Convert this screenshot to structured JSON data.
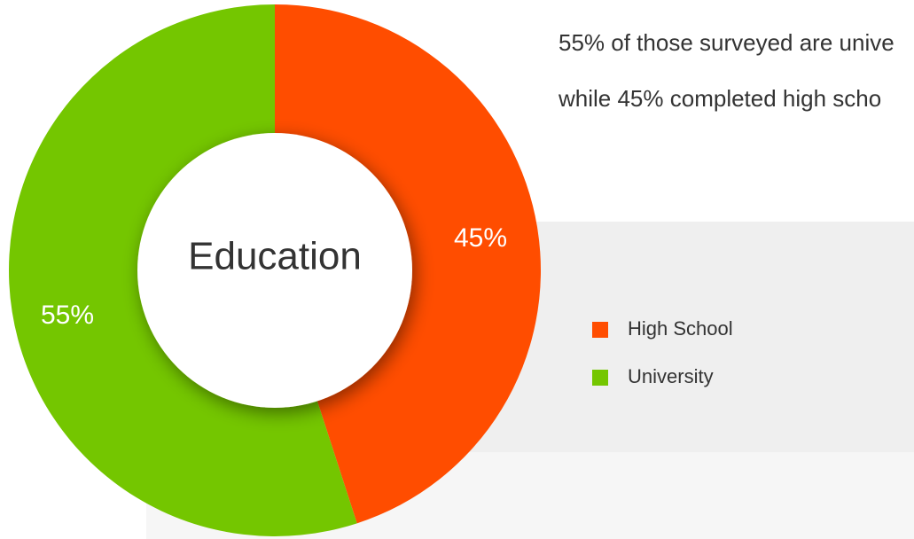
{
  "chart_data": {
    "type": "donut",
    "title": "Education",
    "annotations": [
      "55% of those surveyed are unive",
      "while 45% completed high scho"
    ],
    "categories": [
      "High School",
      "University"
    ],
    "values": [
      45,
      55
    ],
    "value_labels": [
      "45%",
      "55%"
    ],
    "colors": [
      "#ff4d00",
      "#74c600"
    ]
  }
}
